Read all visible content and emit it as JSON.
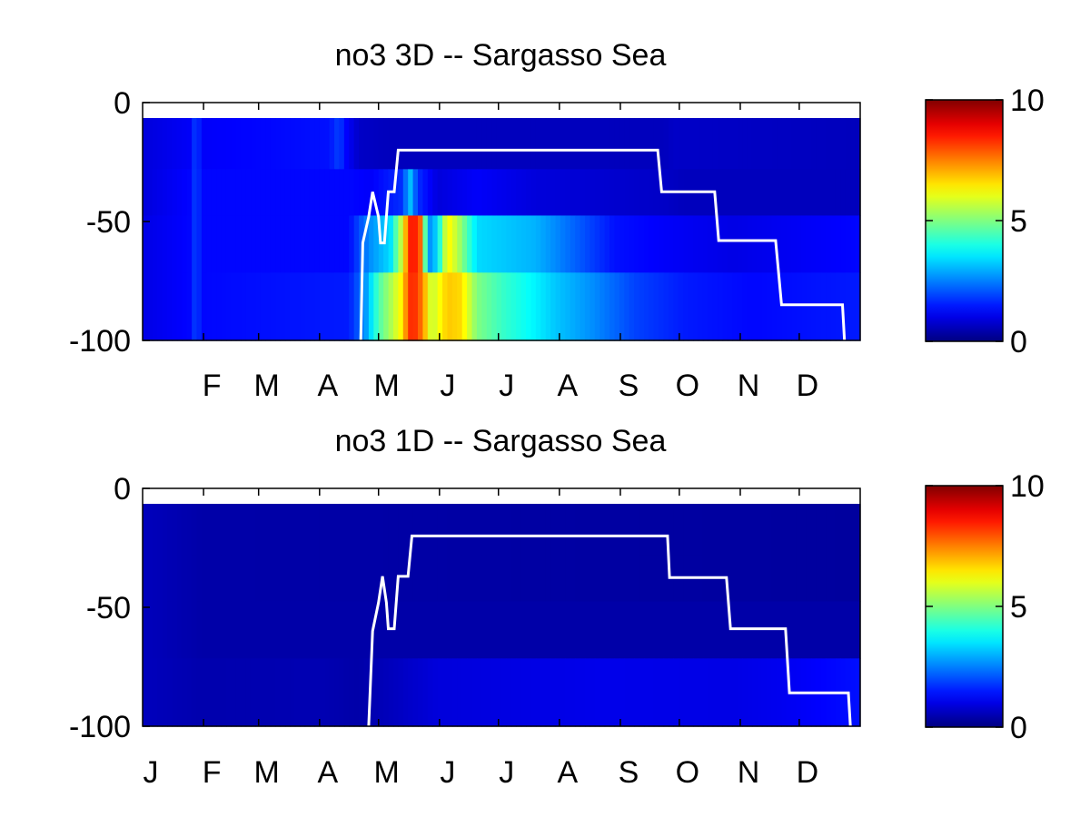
{
  "chart_data": [
    {
      "type": "heatmap",
      "title": "no3 3D   -- Sargasso Sea",
      "ylim": [
        -100,
        0
      ],
      "yticks": [
        "0",
        "-50",
        "-100"
      ],
      "month_labels": [
        "F",
        "M",
        "A",
        "M",
        "J",
        "J",
        "A",
        "S",
        "O",
        "N",
        "D"
      ],
      "x_range_days": [
        0,
        365
      ],
      "depth_bands": [
        {
          "top": -6.5,
          "bottom": -28
        },
        {
          "top": -28,
          "bottom": -47.5
        },
        {
          "top": -47.5,
          "bottom": -71.5
        },
        {
          "top": -71.5,
          "bottom": -100
        }
      ],
      "colorbar": {
        "min": 0,
        "max": 10,
        "ticks": [
          "10",
          "5",
          "0"
        ],
        "colormap": "jet"
      },
      "profiles": [
        {
          "band": 0,
          "points": [
            [
              0,
              0.9
            ],
            [
              25,
              1.2
            ],
            [
              27,
              2.0
            ],
            [
              30,
              1.2
            ],
            [
              95,
              1.4
            ],
            [
              100,
              1.9
            ],
            [
              103,
              1.3
            ],
            [
              110,
              0.7
            ],
            [
              125,
              0.6
            ],
            [
              265,
              0.6
            ],
            [
              270,
              0.7
            ],
            [
              365,
              0.6
            ]
          ]
        },
        {
          "band": 1,
          "points": [
            [
              0,
              0.9
            ],
            [
              25,
              1.3
            ],
            [
              27,
              2.0
            ],
            [
              30,
              1.3
            ],
            [
              106,
              1.3
            ],
            [
              116,
              1.2
            ],
            [
              132,
              1.7
            ],
            [
              136,
              3.2
            ],
            [
              140,
              1.7
            ],
            [
              150,
              0.9
            ],
            [
              170,
              1.2
            ],
            [
              200,
              0.9
            ],
            [
              265,
              0.7
            ],
            [
              275,
              0.6
            ],
            [
              365,
              0.6
            ]
          ]
        },
        {
          "band": 2,
          "points": [
            [
              0,
              1.0
            ],
            [
              25,
              1.3
            ],
            [
              27,
              2.0
            ],
            [
              30,
              1.3
            ],
            [
              105,
              1.3
            ],
            [
              115,
              2.6
            ],
            [
              126,
              3.4
            ],
            [
              131,
              5.4
            ],
            [
              137,
              8.9
            ],
            [
              142,
              7.6
            ],
            [
              145,
              2.5
            ],
            [
              150,
              3.4
            ],
            [
              155,
              6.4
            ],
            [
              160,
              5.6
            ],
            [
              170,
              3.4
            ],
            [
              200,
              3.0
            ],
            [
              215,
              2.4
            ],
            [
              240,
              1.4
            ],
            [
              265,
              1.2
            ],
            [
              300,
              1.0
            ],
            [
              365,
              1.3
            ]
          ]
        },
        {
          "band": 3,
          "points": [
            [
              0,
              1.0
            ],
            [
              25,
              1.3
            ],
            [
              27,
              2.0
            ],
            [
              30,
              1.3
            ],
            [
              105,
              1.5
            ],
            [
              113,
              2.6
            ],
            [
              120,
              4.5
            ],
            [
              126,
              5.4
            ],
            [
              131,
              6.2
            ],
            [
              137,
              8.6
            ],
            [
              142,
              7.6
            ],
            [
              147,
              5.6
            ],
            [
              155,
              6.8
            ],
            [
              162,
              6.6
            ],
            [
              170,
              5.0
            ],
            [
              183,
              4.3
            ],
            [
              196,
              3.8
            ],
            [
              210,
              3.2
            ],
            [
              230,
              2.6
            ],
            [
              250,
              1.9
            ],
            [
              275,
              1.5
            ],
            [
              310,
              1.3
            ],
            [
              365,
              1.5
            ]
          ]
        }
      ],
      "mixed_layer_depth": [
        [
          111,
          -100
        ],
        [
          112,
          -59
        ],
        [
          115,
          -48
        ],
        [
          117,
          -37.5
        ],
        [
          120,
          -48
        ],
        [
          121,
          -59
        ],
        [
          123,
          -59
        ],
        [
          125,
          -37.5
        ],
        [
          128,
          -37.5
        ],
        [
          130,
          -20
        ],
        [
          131,
          -20
        ],
        [
          262,
          -20
        ],
        [
          264,
          -37.5
        ],
        [
          291,
          -37.5
        ],
        [
          293,
          -58
        ],
        [
          322,
          -58
        ],
        [
          325,
          -85
        ],
        [
          356,
          -85
        ],
        [
          357,
          -100
        ]
      ],
      "line_color": "#ffffff"
    },
    {
      "type": "heatmap",
      "title": "no3 1D   -- Sargasso Sea",
      "ylim": [
        -100,
        0
      ],
      "yticks": [
        "0",
        "-50",
        "-100"
      ],
      "month_labels": [
        "J",
        "F",
        "M",
        "A",
        "M",
        "J",
        "J",
        "A",
        "S",
        "O",
        "N",
        "D"
      ],
      "x_range_days": [
        0,
        365
      ],
      "depth_bands": [
        {
          "top": -6.5,
          "bottom": -28
        },
        {
          "top": -28,
          "bottom": -47.5
        },
        {
          "top": -47.5,
          "bottom": -71.5
        },
        {
          "top": -71.5,
          "bottom": -100
        }
      ],
      "colorbar": {
        "min": 0,
        "max": 10,
        "ticks": [
          "10",
          "5",
          "0"
        ],
        "colormap": "jet"
      },
      "profiles": [
        {
          "band": 0,
          "points": [
            [
              0,
              0.6
            ],
            [
              30,
              0.4
            ],
            [
              365,
              0.3
            ]
          ]
        },
        {
          "band": 1,
          "points": [
            [
              0,
              0.6
            ],
            [
              30,
              0.4
            ],
            [
              365,
              0.3
            ]
          ]
        },
        {
          "band": 2,
          "points": [
            [
              0,
              0.6
            ],
            [
              30,
              0.4
            ],
            [
              365,
              0.4
            ]
          ]
        },
        {
          "band": 3,
          "points": [
            [
              0,
              0.6
            ],
            [
              30,
              0.45
            ],
            [
              90,
              0.5
            ],
            [
              110,
              0.4
            ],
            [
              150,
              0.9
            ],
            [
              230,
              1.05
            ],
            [
              300,
              1.0
            ],
            [
              325,
              1.1
            ],
            [
              365,
              1.4
            ]
          ]
        }
      ],
      "mixed_layer_depth": [
        [
          115,
          -100
        ],
        [
          117,
          -60
        ],
        [
          120,
          -48
        ],
        [
          122,
          -37
        ],
        [
          124,
          -48
        ],
        [
          125,
          -59
        ],
        [
          128,
          -59
        ],
        [
          130,
          -37
        ],
        [
          135,
          -37
        ],
        [
          137,
          -20
        ],
        [
          267,
          -20
        ],
        [
          268,
          -37.5
        ],
        [
          297,
          -37.5
        ],
        [
          299,
          -59
        ],
        [
          327,
          -59
        ],
        [
          329,
          -86
        ],
        [
          359,
          -86
        ],
        [
          360,
          -100
        ]
      ],
      "line_color": "#ffffff"
    }
  ]
}
